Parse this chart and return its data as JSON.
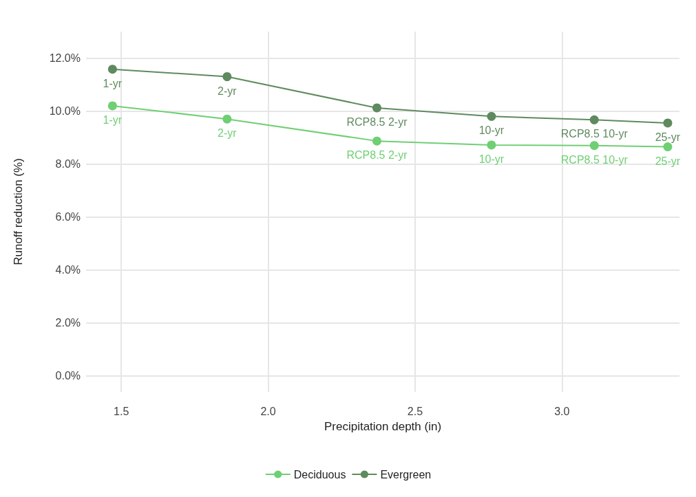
{
  "chart_data": {
    "type": "line",
    "xlabel": "Precipitation depth (in)",
    "ylabel": "Runoff reduction (%)",
    "xlim": [
      1.38,
      3.4
    ],
    "xticks": [
      1.5,
      {
        "value": 2,
        "label": "2.0"
      },
      2.5,
      {
        "value": 3,
        "label": "3.0"
      }
    ],
    "ylim": [
      -0.6,
      13.0
    ],
    "yticks": [
      {
        "value": 0,
        "label": "0.0%"
      },
      {
        "value": 2,
        "label": "2.0%"
      },
      {
        "value": 4,
        "label": "4.0%"
      },
      {
        "value": 6,
        "label": "6.0%"
      },
      {
        "value": 8,
        "label": "8.0%"
      },
      {
        "value": 10,
        "label": "10.0%"
      },
      {
        "value": 12,
        "label": "12.0%"
      }
    ],
    "grid": true,
    "legend": "bottom",
    "marker": "circle",
    "line_style": "solid",
    "series": [
      {
        "name": "Deciduous",
        "color": "#6fcf73",
        "x": [
          1.47,
          1.86,
          2.37,
          2.76,
          3.11,
          3.36
        ],
        "values": [
          10.2,
          9.7,
          8.87,
          8.72,
          8.7,
          8.65
        ]
      },
      {
        "name": "Evergreen",
        "color": "#5e8a5e",
        "x": [
          1.47,
          1.86,
          2.37,
          2.76,
          3.11,
          3.36
        ],
        "values": [
          11.58,
          11.3,
          10.12,
          9.8,
          9.67,
          9.55
        ]
      }
    ],
    "annotations": [
      {
        "text": "1-yr",
        "x": 1.47,
        "y": 10.2
      },
      {
        "text": "2-yr",
        "x": 1.86,
        "y": 9.7
      },
      {
        "text": "RCP8.5 2-yr",
        "x": 2.37,
        "y": 8.87
      },
      {
        "text": "10-yr",
        "x": 2.76,
        "y": 8.72
      },
      {
        "text": "RCP8.5 10-yr",
        "x": 3.11,
        "y": 8.7
      },
      {
        "text": "25-yr",
        "x": 3.36,
        "y": 8.65
      },
      {
        "text": "1-yr",
        "x": 1.47,
        "y": 11.58
      },
      {
        "text": "2-yr",
        "x": 1.86,
        "y": 11.3
      },
      {
        "text": "RCP8.5 2-yr",
        "x": 2.37,
        "y": 10.12
      },
      {
        "text": "10-yr",
        "x": 2.76,
        "y": 9.8
      },
      {
        "text": "RCP8.5 10-yr",
        "x": 3.11,
        "y": 9.67
      },
      {
        "text": "25-yr",
        "x": 3.36,
        "y": 9.55
      }
    ]
  }
}
